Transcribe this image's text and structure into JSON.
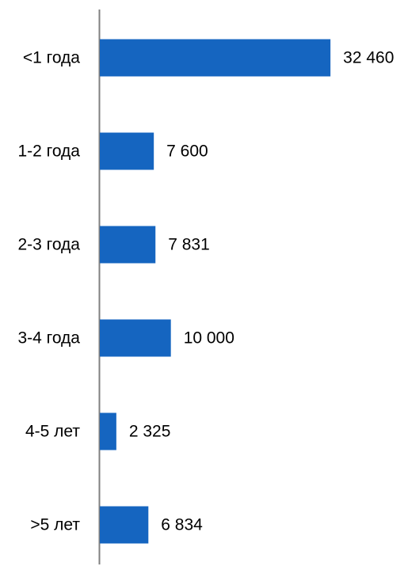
{
  "chart_data": {
    "type": "bar",
    "orientation": "horizontal",
    "categories": [
      "<1 года",
      "1-2 года",
      "2-3 года",
      "3-4 года",
      "4-5 лет",
      ">5 лет"
    ],
    "values": [
      32460,
      7600,
      7831,
      10000,
      2325,
      6834
    ],
    "value_labels": [
      "32 460",
      "7 600",
      "7 831",
      "10 000",
      "2 325",
      "6 834"
    ],
    "xlim": [
      0,
      33000
    ],
    "grid": false,
    "bar_color": "#1565C0",
    "axis_color": "#808080",
    "text_color": "#000000"
  }
}
